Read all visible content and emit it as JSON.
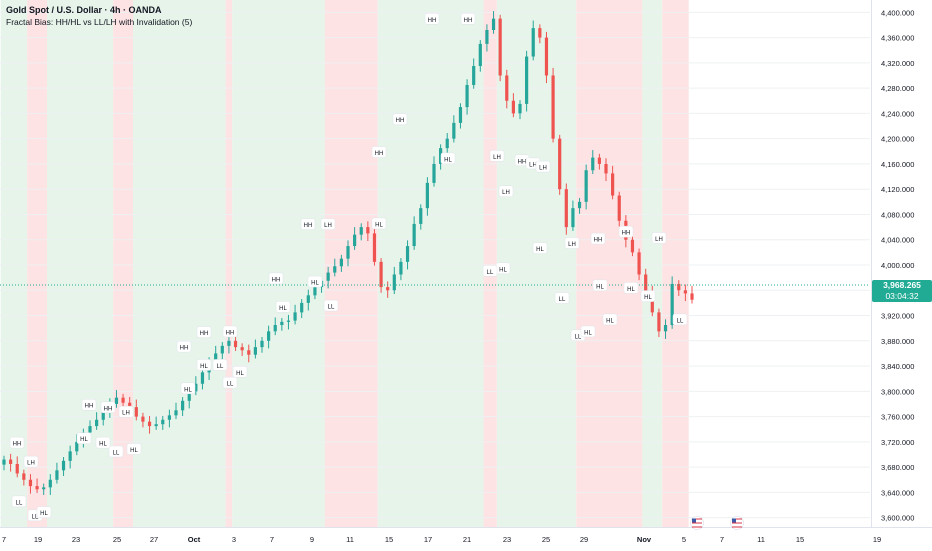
{
  "header": {
    "title": "Gold Spot / U.S. Dollar · 4h · OANDA",
    "indicator": "Fractal Bias: HH/HL vs LL/LH with Invalidation (5)"
  },
  "price_tag": {
    "price": "3,968.265",
    "countdown": "03:04:32"
  },
  "colors": {
    "up": "#26a69a",
    "down": "#ef5350",
    "bull_bg": "#e6f4ea",
    "bear_bg": "#fde3e3",
    "current_price_line": "#22ab94"
  },
  "chart_data": {
    "type": "candlestick",
    "title": "Gold Spot / U.S. Dollar · 4h · OANDA",
    "indicator": "Fractal Bias: HH/HL vs LL/LH with Invalidation (5)",
    "ylim": [
      3590,
      4410
    ],
    "y_ticks": [
      "4,400.000",
      "4,360.000",
      "4,320.000",
      "4,280.000",
      "4,240.000",
      "4,200.000",
      "4,160.000",
      "4,120.000",
      "4,080.000",
      "4,040.000",
      "4,000.000",
      "3,960.000",
      "3,920.000",
      "3,880.000",
      "3,840.000",
      "3,800.000",
      "3,760.000",
      "3,720.000",
      "3,680.000",
      "3,640.000",
      "3,600.000"
    ],
    "x_ticks": [
      "7",
      "19",
      "23",
      "25",
      "27",
      "Oct",
      "3",
      "7",
      "9",
      "11",
      "15",
      "17",
      "21",
      "23",
      "25",
      "29",
      "Nov",
      "5",
      "7",
      "11",
      "15",
      "19"
    ],
    "current_price": 3968.265,
    "regimes": [
      {
        "from": 0,
        "to": 4,
        "bias": "bull"
      },
      {
        "from": 4,
        "to": 7,
        "bias": "bear"
      },
      {
        "from": 7,
        "to": 17,
        "bias": "bull"
      },
      {
        "from": 17,
        "to": 20,
        "bias": "bear"
      },
      {
        "from": 20,
        "to": 34,
        "bias": "bull"
      },
      {
        "from": 34,
        "to": 35,
        "bias": "bear"
      },
      {
        "from": 35,
        "to": 49,
        "bias": "bull"
      },
      {
        "from": 49,
        "to": 57,
        "bias": "bear"
      },
      {
        "from": 57,
        "to": 73,
        "bias": "bull"
      },
      {
        "from": 73,
        "to": 75,
        "bias": "bear"
      },
      {
        "from": 75,
        "to": 87,
        "bias": "bull"
      },
      {
        "from": 87,
        "to": 97,
        "bias": "bear"
      },
      {
        "from": 97,
        "to": 100,
        "bias": "bull"
      },
      {
        "from": 100,
        "to": 104,
        "bias": "bear"
      }
    ],
    "closes": [
      3692,
      3685,
      3670,
      3660,
      3650,
      3645,
      3648,
      3660,
      3675,
      3690,
      3705,
      3720,
      3735,
      3745,
      3755,
      3770,
      3780,
      3790,
      3782,
      3775,
      3760,
      3752,
      3745,
      3748,
      3755,
      3762,
      3770,
      3785,
      3800,
      3812,
      3830,
      3845,
      3860,
      3872,
      3880,
      3870,
      3865,
      3858,
      3870,
      3880,
      3895,
      3905,
      3910,
      3912,
      3925,
      3940,
      3952,
      3965,
      3975,
      3988,
      3998,
      4010,
      4030,
      4048,
      4060,
      4050,
      4005,
      3965,
      3960,
      3985,
      4005,
      4030,
      4065,
      4090,
      4130,
      4160,
      4185,
      4200,
      4225,
      4250,
      4285,
      4315,
      4350,
      4372,
      4390,
      4300,
      4260,
      4240,
      4255,
      4330,
      4375,
      4360,
      4300,
      4200,
      4120,
      4060,
      4090,
      4100,
      4150,
      4170,
      4160,
      4145,
      4110,
      4070,
      4040,
      4020,
      3985,
      3955,
      3925,
      3895,
      3905,
      3970,
      3960,
      3955,
      3945
    ],
    "labels": [
      {
        "text": "HH",
        "x": 17,
        "price": 3718
      },
      {
        "text": "LH",
        "x": 31,
        "price": 3688
      },
      {
        "text": "LL",
        "x": 19,
        "price": 3625
      },
      {
        "text": "LL",
        "x": 35,
        "price": 3603
      },
      {
        "text": "HL",
        "x": 44,
        "price": 3608
      },
      {
        "text": "HH",
        "x": 89,
        "price": 3778
      },
      {
        "text": "HH",
        "x": 108,
        "price": 3774
      },
      {
        "text": "LH",
        "x": 126,
        "price": 3767
      },
      {
        "text": "HL",
        "x": 84,
        "price": 3725
      },
      {
        "text": "HL",
        "x": 103,
        "price": 3718
      },
      {
        "text": "LL",
        "x": 116,
        "price": 3704
      },
      {
        "text": "HL",
        "x": 134,
        "price": 3708
      },
      {
        "text": "HH",
        "x": 184,
        "price": 3870
      },
      {
        "text": "HH",
        "x": 204,
        "price": 3893
      },
      {
        "text": "HH",
        "x": 230,
        "price": 3894
      },
      {
        "text": "HL",
        "x": 204,
        "price": 3841
      },
      {
        "text": "HL",
        "x": 188,
        "price": 3804
      },
      {
        "text": "LL",
        "x": 220,
        "price": 3841
      },
      {
        "text": "HL",
        "x": 240,
        "price": 3830
      },
      {
        "text": "LL",
        "x": 230,
        "price": 3813
      },
      {
        "text": "HH",
        "x": 276,
        "price": 3978
      },
      {
        "text": "HL",
        "x": 283,
        "price": 3933
      },
      {
        "text": "HH",
        "x": 308,
        "price": 4064
      },
      {
        "text": "LH",
        "x": 328,
        "price": 4064
      },
      {
        "text": "HL",
        "x": 315,
        "price": 3973
      },
      {
        "text": "LL",
        "x": 331,
        "price": 3935
      },
      {
        "text": "HL",
        "x": 379,
        "price": 4065
      },
      {
        "text": "HH",
        "x": 379,
        "price": 4178
      },
      {
        "text": "HH",
        "x": 400,
        "price": 4230
      },
      {
        "text": "HH",
        "x": 432,
        "price": 4389
      },
      {
        "text": "HH",
        "x": 468,
        "price": 4389
      },
      {
        "text": "HL",
        "x": 448,
        "price": 4168
      },
      {
        "text": "LH",
        "x": 497,
        "price": 4172
      },
      {
        "text": "LH",
        "x": 506,
        "price": 4116
      },
      {
        "text": "HH",
        "x": 522,
        "price": 4165
      },
      {
        "text": "LH",
        "x": 533,
        "price": 4160
      },
      {
        "text": "LH",
        "x": 543,
        "price": 4155
      },
      {
        "text": "HL",
        "x": 503,
        "price": 3994
      },
      {
        "text": "LL",
        "x": 490,
        "price": 3990
      },
      {
        "text": "HL",
        "x": 540,
        "price": 4026
      },
      {
        "text": "LH",
        "x": 572,
        "price": 4034
      },
      {
        "text": "HH",
        "x": 598,
        "price": 4041
      },
      {
        "text": "HH",
        "x": 626,
        "price": 4052
      },
      {
        "text": "LH",
        "x": 659,
        "price": 4042
      },
      {
        "text": "LL",
        "x": 562,
        "price": 3947
      },
      {
        "text": "HL",
        "x": 600,
        "price": 3967
      },
      {
        "text": "HL",
        "x": 631,
        "price": 3963
      },
      {
        "text": "HL",
        "x": 648,
        "price": 3950
      },
      {
        "text": "LL",
        "x": 578,
        "price": 3888
      },
      {
        "text": "HL",
        "x": 588,
        "price": 3894
      },
      {
        "text": "HL",
        "x": 610,
        "price": 3913
      },
      {
        "text": "LL",
        "x": 680,
        "price": 3913
      }
    ]
  }
}
